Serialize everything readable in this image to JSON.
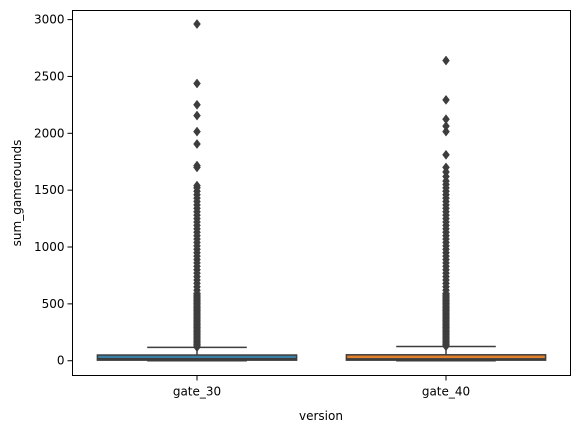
{
  "chart_data": {
    "type": "box",
    "xlabel": "version",
    "ylabel": "sum_gamerounds",
    "categories": [
      "gate_30",
      "gate_40"
    ],
    "ylim": [
      -130,
      3080
    ],
    "yticks": [
      0,
      500,
      1000,
      1500,
      2000,
      2500,
      3000
    ],
    "series": [
      {
        "color": "#3a80a6",
        "q1": 5,
        "median": 17,
        "q3": 50,
        "whisker_low": 0,
        "whisker_high": 117,
        "outliers": [
          2961,
          2438,
          2251,
          2156,
          2015,
          1906,
          1716,
          1700,
          1540,
          1520,
          1490,
          1460,
          1430,
          1400,
          1370,
          1340,
          1310,
          1280,
          1250,
          1220,
          1190,
          1160,
          1130,
          1100,
          1070,
          1040,
          1010,
          980,
          950,
          920,
          890,
          860,
          830,
          800,
          770,
          740,
          710,
          680,
          650,
          620,
          590,
          560,
          530,
          500,
          470,
          440,
          410,
          380,
          350,
          320,
          290,
          260,
          230,
          200,
          170,
          140,
          120
        ]
      },
      {
        "color": "#e1812b",
        "q1": 5,
        "median": 16,
        "q3": 52,
        "whisker_low": 0,
        "whisker_high": 125,
        "outliers": [
          2640,
          2294,
          2124,
          2063,
          2015,
          1811,
          1700,
          1660,
          1620,
          1580,
          1550,
          1520,
          1490,
          1460,
          1430,
          1400,
          1370,
          1340,
          1310,
          1280,
          1250,
          1220,
          1190,
          1160,
          1130,
          1100,
          1070,
          1040,
          1010,
          980,
          950,
          920,
          890,
          860,
          830,
          800,
          770,
          740,
          710,
          680,
          650,
          620,
          590,
          560,
          530,
          500,
          470,
          440,
          410,
          380,
          350,
          320,
          290,
          260,
          230,
          200,
          170,
          140,
          128
        ]
      }
    ]
  }
}
